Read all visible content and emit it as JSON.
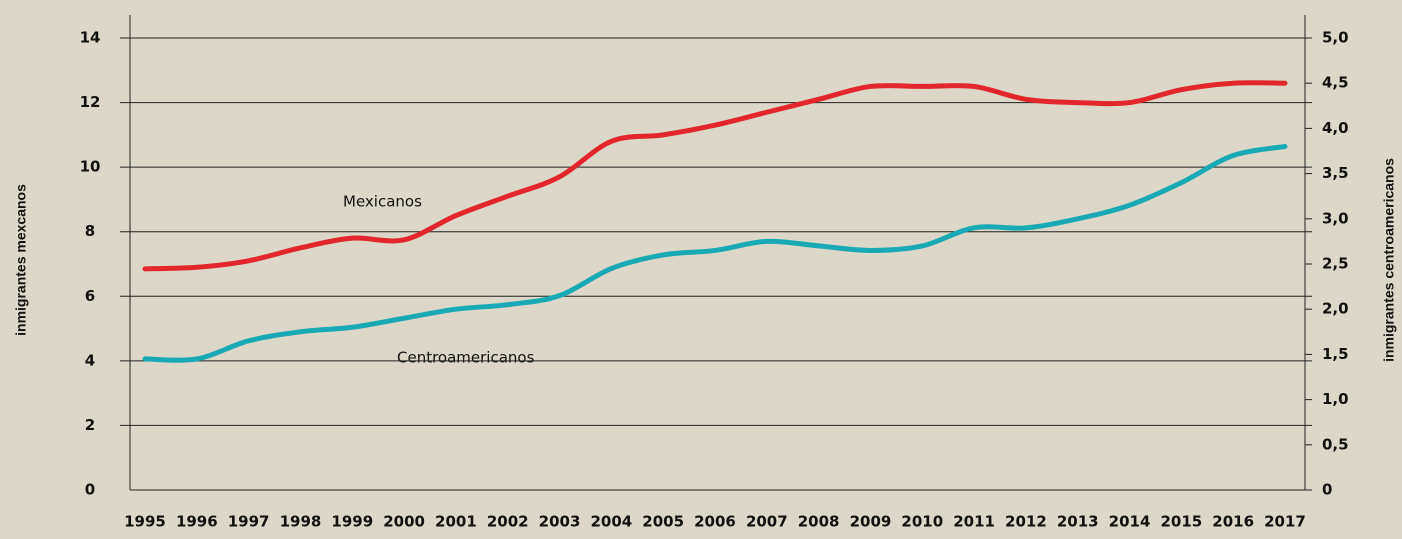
{
  "chart_data": {
    "type": "line",
    "categories": [
      "1995",
      "1996",
      "1997",
      "1998",
      "1999",
      "2000",
      "2001",
      "2002",
      "2003",
      "2004",
      "2005",
      "2006",
      "2007",
      "2008",
      "2009",
      "2010",
      "2011",
      "2012",
      "2013",
      "2014",
      "2015",
      "2016",
      "2017"
    ],
    "series": [
      {
        "name": "Mexicanos",
        "color": "#e2262b",
        "axis": "y",
        "values": [
          6.85,
          6.9,
          7.1,
          7.5,
          7.8,
          7.75,
          8.5,
          9.1,
          9.7,
          10.8,
          11.0,
          11.3,
          11.7,
          12.1,
          12.5,
          12.5,
          12.5,
          12.1,
          12.0,
          12.0,
          12.4,
          12.6,
          12.6
        ]
      },
      {
        "name": "Centroamericanos",
        "color": "#19a9b4",
        "axis": "y2",
        "values": [
          1.45,
          1.45,
          1.65,
          1.75,
          1.8,
          1.9,
          2.0,
          2.05,
          2.15,
          2.45,
          2.6,
          2.65,
          2.75,
          2.7,
          2.65,
          2.7,
          2.9,
          2.9,
          3.0,
          3.15,
          3.4,
          3.7,
          3.8
        ]
      }
    ],
    "ylabel": "inmigrantes mexcanos",
    "y2label": "inmigrantes centroamericanos",
    "ylim": [
      0,
      14
    ],
    "yticks": [
      0,
      2,
      4,
      6,
      8,
      10,
      12,
      14
    ],
    "y2lim": [
      0,
      5
    ],
    "y2ticks": [
      0,
      {
        "value": 0.5,
        "label": "0,5"
      },
      {
        "value": 1,
        "label": "1,0"
      },
      {
        "value": 1.5,
        "label": "1,5"
      },
      {
        "value": 2,
        "label": "2,0"
      },
      {
        "value": 2.5,
        "label": "2,5"
      },
      {
        "value": 3,
        "label": "3,0"
      },
      {
        "value": 3.5,
        "label": "3,5"
      },
      {
        "value": 4,
        "label": "4,0"
      },
      {
        "value": 4.5,
        "label": "4,5"
      },
      {
        "value": 5,
        "label": "5,0"
      }
    ],
    "grid": true
  }
}
